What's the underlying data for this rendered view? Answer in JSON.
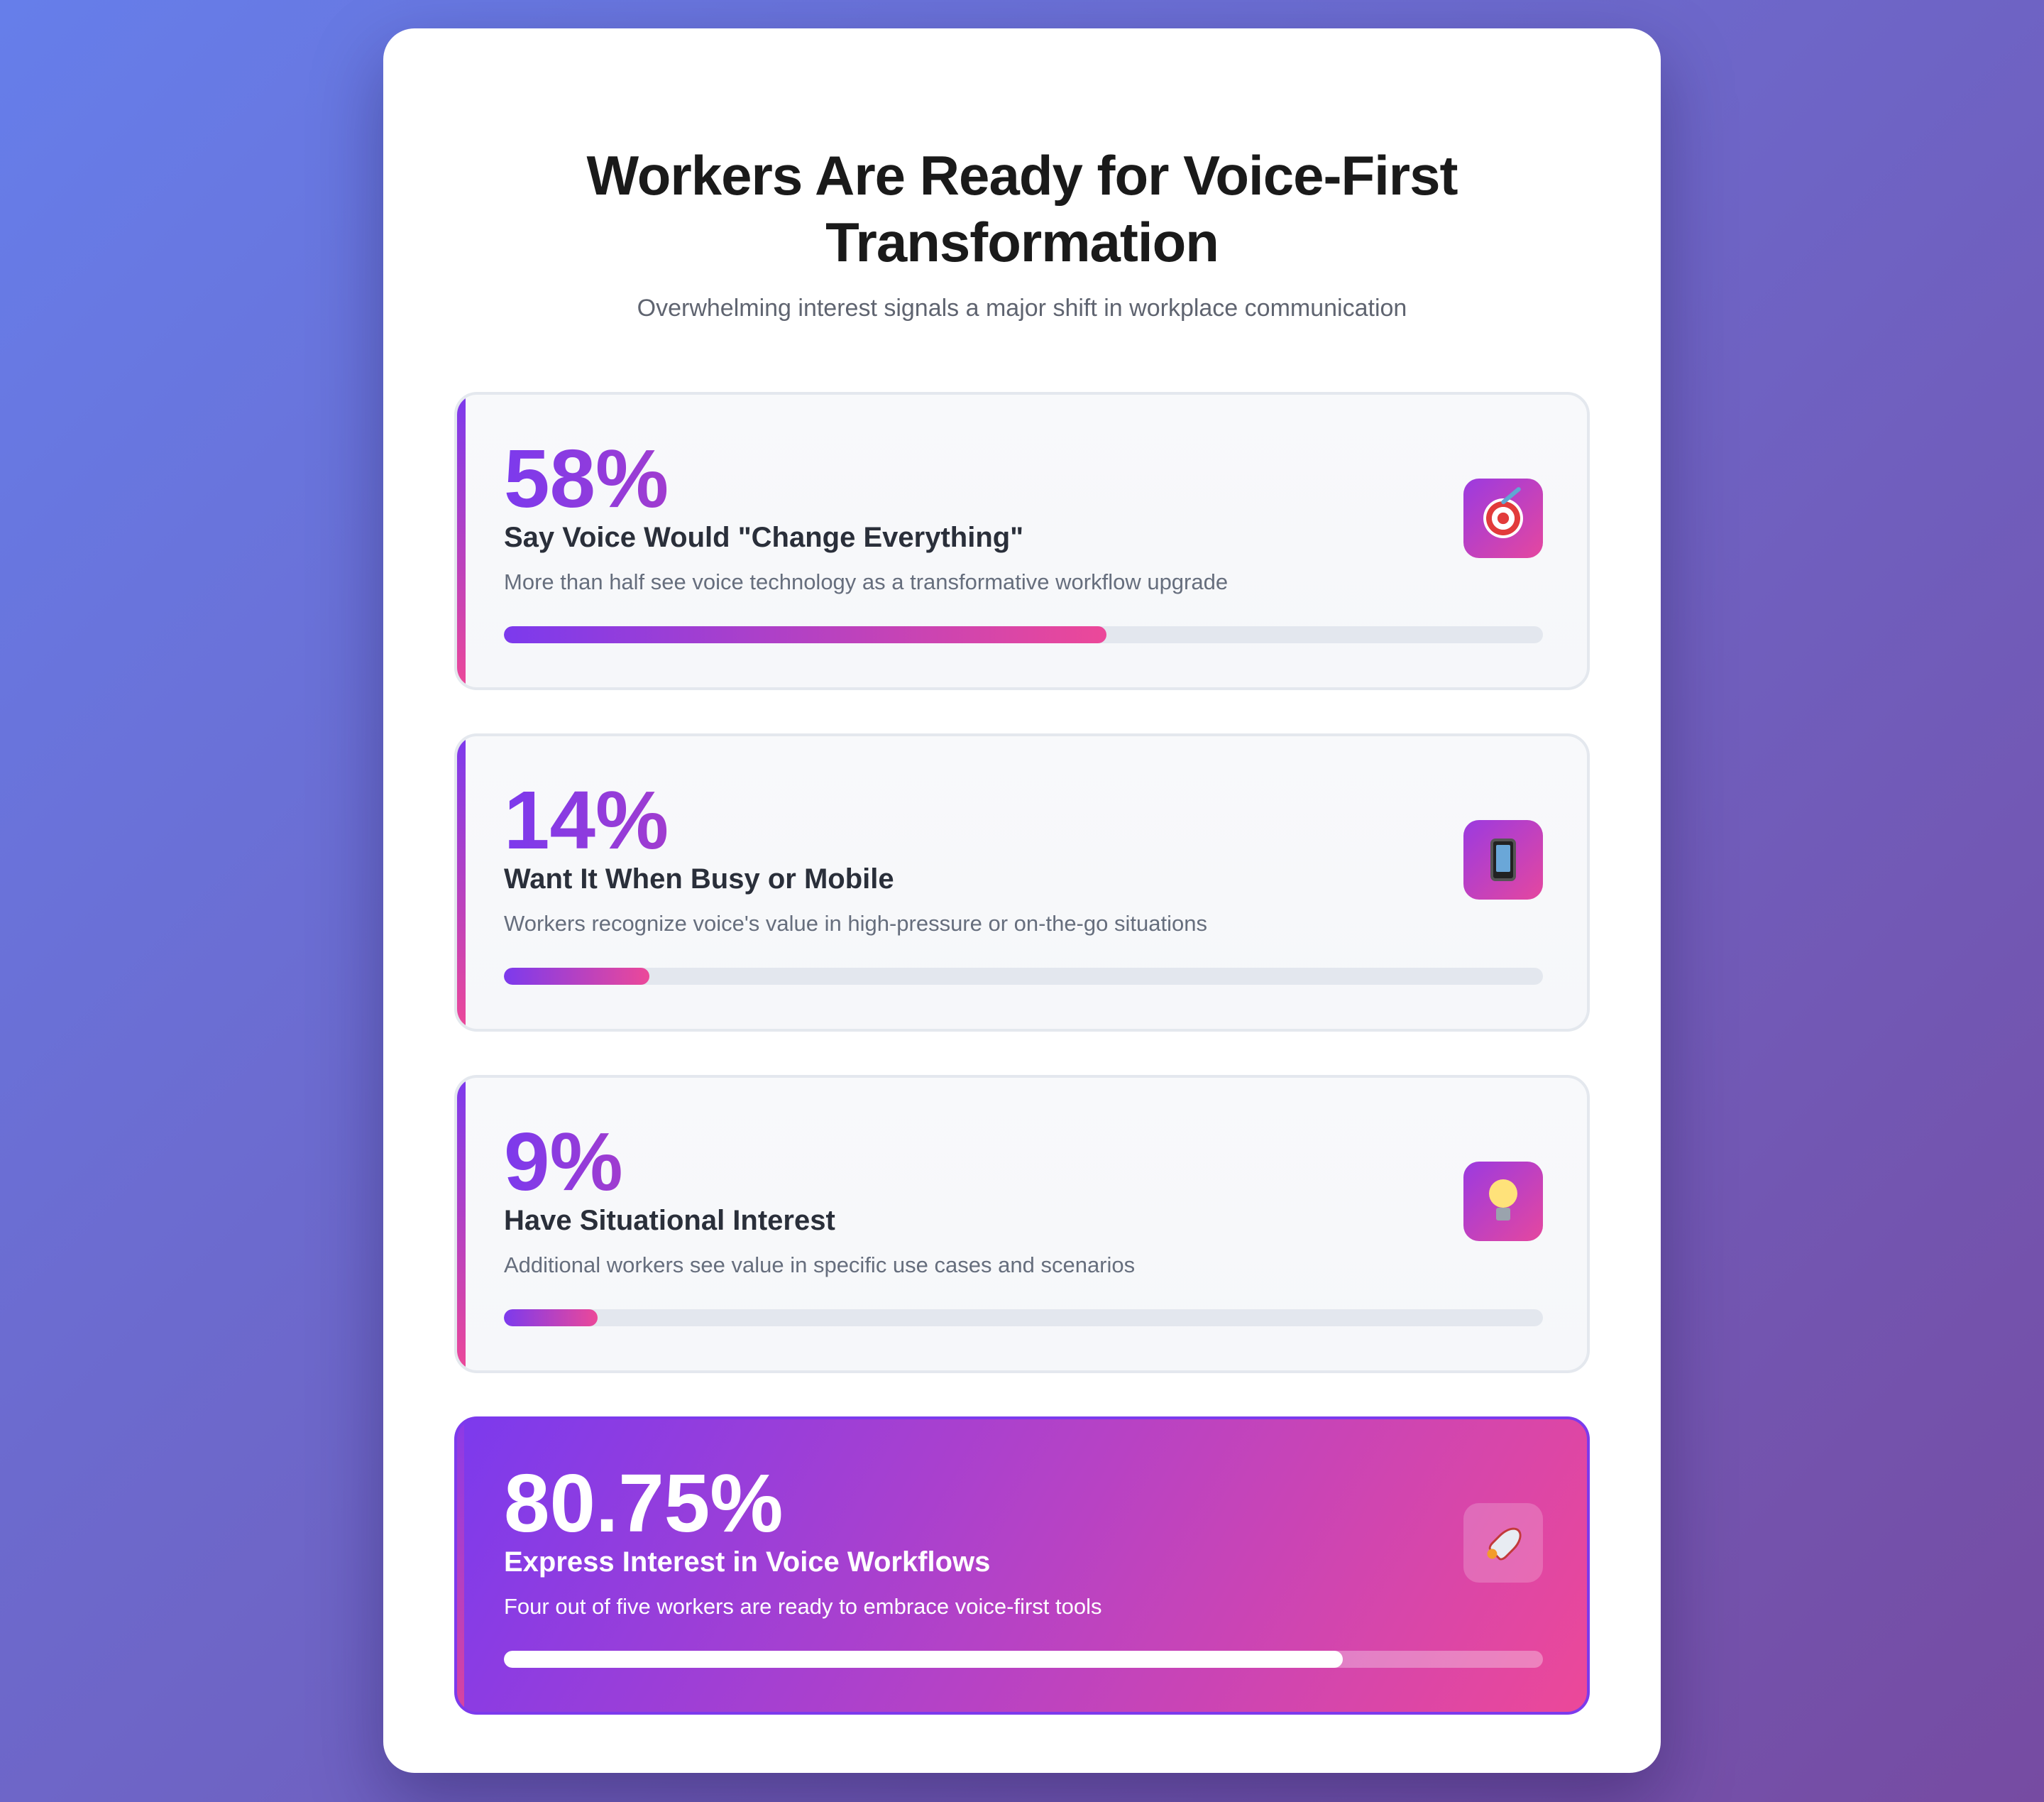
{
  "header": {
    "title": "Workers Are Ready for Voice-First Transformation",
    "subtitle": "Overwhelming interest signals a major shift in workplace communication"
  },
  "stats": [
    {
      "value": "58%",
      "percent": 58,
      "label": "Say Voice Would \"Change Everything\"",
      "description": "More than half see voice technology as a transformative workflow upgrade",
      "icon": "target-icon"
    },
    {
      "value": "14%",
      "percent": 14,
      "label": "Want It When Busy or Mobile",
      "description": "Workers recognize voice's value in high-pressure or on-the-go situations",
      "icon": "mobile-phone-icon"
    },
    {
      "value": "9%",
      "percent": 9,
      "label": "Have Situational Interest",
      "description": "Additional workers see value in specific use cases and scenarios",
      "icon": "light-bulb-icon"
    },
    {
      "value": "80.75%",
      "percent": 80.75,
      "label": "Express Interest in Voice Workflows",
      "description": "Four out of five workers are ready to embrace voice-first tools",
      "icon": "rocket-icon"
    }
  ],
  "colors": {
    "background_start": "#667eea",
    "background_end": "#764ba2",
    "accent_purple": "#7c3aed",
    "accent_pink": "#ec4899"
  }
}
